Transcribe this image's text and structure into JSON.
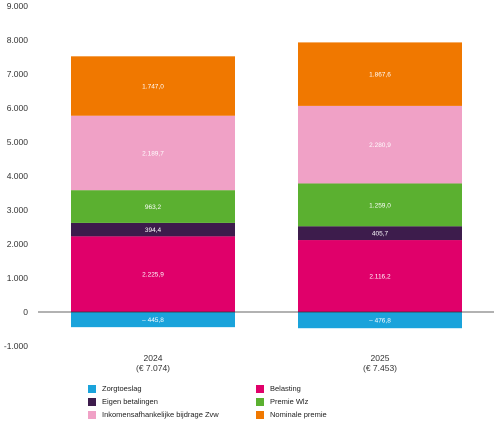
{
  "chart_data": {
    "type": "bar",
    "stacked": true,
    "categories": [
      "2024",
      "2025"
    ],
    "category_sublabels": [
      "(€ 7.074)",
      "(€ 7.453)"
    ],
    "ylim": [
      -1000,
      9000
    ],
    "yticks": [
      -1000,
      0,
      1000,
      2000,
      3000,
      4000,
      5000,
      6000,
      7000,
      8000,
      9000
    ],
    "ytick_labels": [
      "-1.000",
      "0",
      "1.000",
      "2.000",
      "3.000",
      "4.000",
      "5.000",
      "6.000",
      "7.000",
      "8.000",
      "9.000"
    ],
    "grid": false,
    "legend_position": "bottom",
    "series": [
      {
        "name": "Zorgtoeslag",
        "color": "#1aa3db",
        "values": [
          -445.8,
          -476.8
        ],
        "labels": [
          "– 445,8",
          "– 476,8"
        ]
      },
      {
        "name": "Belasting",
        "color": "#e0006a",
        "values": [
          2225.9,
          2116.2
        ],
        "labels": [
          "2.225,9",
          "2.116,2"
        ]
      },
      {
        "name": "Eigen betalingen",
        "color": "#3d1c4c",
        "values": [
          394.4,
          405.7
        ],
        "labels": [
          "394,4",
          "405,7"
        ]
      },
      {
        "name": "Premie Wlz",
        "color": "#5bb030",
        "values": [
          963.2,
          1259.0
        ],
        "labels": [
          "963,2",
          "1.259,0"
        ]
      },
      {
        "name": "Inkomensafhankelijke bijdrage Zvw",
        "color": "#f0a1c6",
        "values": [
          2189.7,
          2280.9
        ],
        "labels": [
          "2.189,7",
          "2.280,9"
        ]
      },
      {
        "name": "Nominale premie",
        "color": "#f07800",
        "values": [
          1747.0,
          1867.6
        ],
        "labels": [
          "1.747,0",
          "1.867,6"
        ]
      }
    ],
    "legend_order": [
      "Zorgtoeslag",
      "Belasting",
      "Eigen betalingen",
      "Premie Wlz",
      "Inkomensafhankelijke bijdrage Zvw",
      "Nominale premie"
    ]
  }
}
